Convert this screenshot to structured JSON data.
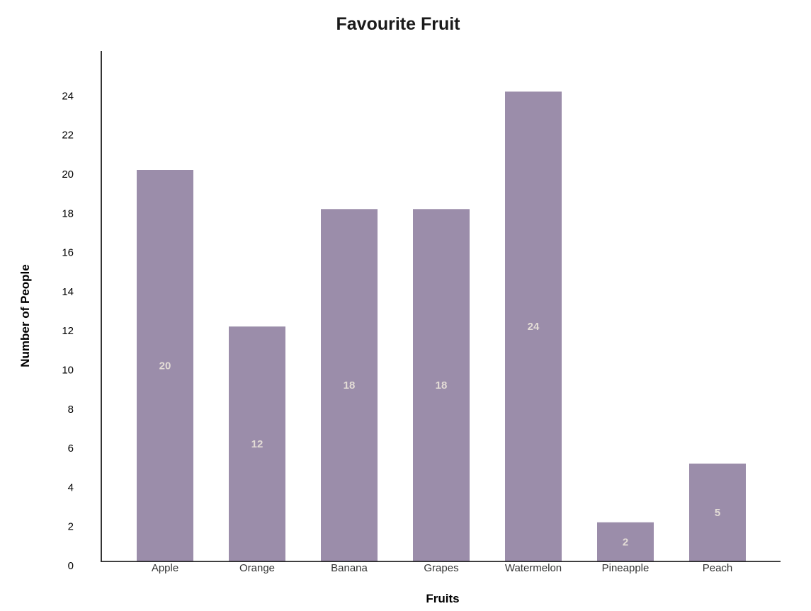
{
  "chart_data": {
    "type": "bar",
    "title": "Favourite Fruit",
    "xlabel": "Fruits",
    "ylabel": "Number of People",
    "categories": [
      "Apple",
      "Orange",
      "Banana",
      "Grapes",
      "Watermelon",
      "Pineapple",
      "Peach"
    ],
    "values": [
      20,
      12,
      18,
      18,
      24,
      2,
      5
    ],
    "ylim": [
      0,
      26
    ],
    "yticks": [
      0,
      2,
      4,
      6,
      8,
      10,
      12,
      14,
      16,
      18,
      20,
      22,
      24
    ],
    "grid": false,
    "legend": "none",
    "bar_color": "#9b8daa",
    "label_color": "#e3dcd6"
  }
}
